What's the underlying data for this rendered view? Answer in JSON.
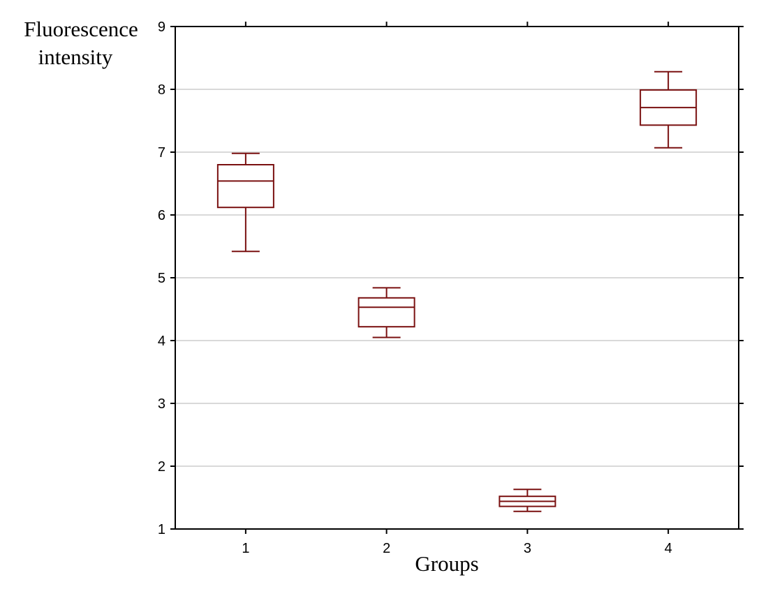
{
  "chart_data": {
    "type": "box",
    "ylabel_lines": [
      "Fluorescence",
      "intensity"
    ],
    "xlabel": "Groups",
    "categories": [
      "1",
      "2",
      "3",
      "4"
    ],
    "y_ticks": [
      "1",
      "2",
      "3",
      "4",
      "5",
      "6",
      "7",
      "8",
      "9"
    ],
    "ylim": [
      1,
      9
    ],
    "grid": "horizontal",
    "series": [
      {
        "category": "1",
        "whisker_low": 5.42,
        "q1": 6.12,
        "median": 6.54,
        "q3": 6.8,
        "whisker_high": 6.98
      },
      {
        "category": "2",
        "whisker_low": 4.05,
        "q1": 4.22,
        "median": 4.53,
        "q3": 4.68,
        "whisker_high": 4.84
      },
      {
        "category": "3",
        "whisker_low": 1.28,
        "q1": 1.36,
        "median": 1.44,
        "q3": 1.52,
        "whisker_high": 1.63
      },
      {
        "category": "4",
        "whisker_low": 7.07,
        "q1": 7.43,
        "median": 7.71,
        "q3": 7.99,
        "whisker_high": 8.28
      }
    ],
    "colors": {
      "box": "#7a1010",
      "axis": "#000000",
      "grid": "#d9d9d9"
    }
  }
}
